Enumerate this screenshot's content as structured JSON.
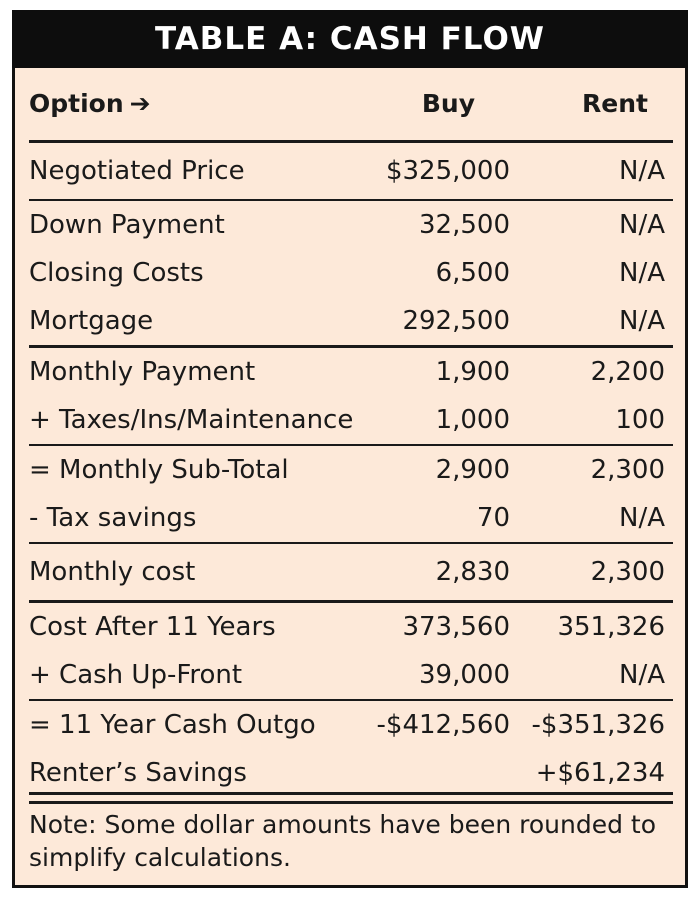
{
  "title": "TABLE A: CASH FLOW",
  "header": {
    "option_label": "Option",
    "arrow": "➔",
    "buy_label": "Buy",
    "rent_label": "Rent"
  },
  "rows": [
    {
      "label": "Negotiated Price",
      "buy": "$325,000",
      "rent": "N/A"
    },
    {
      "label": "Down Payment",
      "buy": "32,500",
      "rent": "N/A"
    },
    {
      "label": "Closing Costs",
      "buy": "6,500",
      "rent": "N/A"
    },
    {
      "label": "Mortgage",
      "buy": "292,500",
      "rent": "N/A"
    },
    {
      "label": "Monthly Payment",
      "buy": "1,900",
      "rent": "2,200"
    },
    {
      "label": "+ Taxes/Ins/Maintenance",
      "buy": "1,000",
      "rent": "100"
    },
    {
      "label": "= Monthly Sub-Total",
      "buy": "2,900",
      "rent": "2,300"
    },
    {
      "label": "- Tax savings",
      "buy": "70",
      "rent": "N/A"
    },
    {
      "label": "Monthly cost",
      "buy": "2,830",
      "rent": "2,300"
    },
    {
      "label": "Cost After 11 Years",
      "buy": "373,560",
      "rent": "351,326"
    },
    {
      "label": "+ Cash Up-Front",
      "buy": "39,000",
      "rent": "N/A"
    },
    {
      "label": "= 11 Year Cash Outgo",
      "buy": "-$412,560",
      "rent": "-$351,326"
    },
    {
      "label": "Renter’s Savings",
      "buy": "",
      "rent": "+$61,234"
    }
  ],
  "note": "Note: Some dollar amounts have been rounded to simplify calculations."
}
